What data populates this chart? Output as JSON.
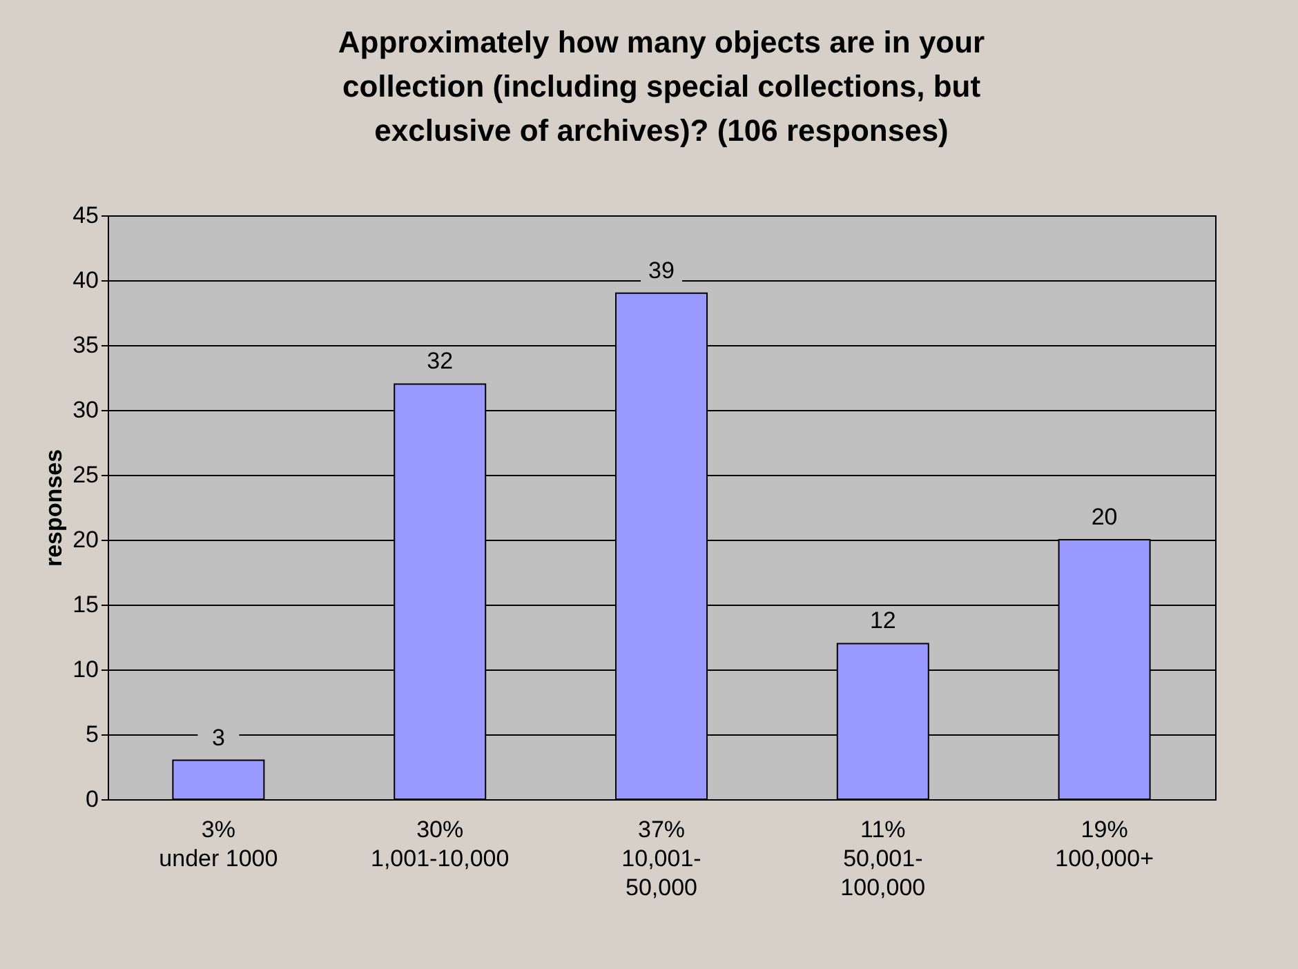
{
  "chart_data": {
    "type": "bar",
    "title": "Approximately how many objects are in your collection (including special collections, but exclusive of archives)? (106 responses)",
    "ylabel": "responses",
    "categories": [
      "3%\n\nunder 1000",
      "30%\n\n1,001-10,000",
      "37%\n\n10,001-\n50,000",
      "11%\n\n50,001-\n100,000",
      "19%\n\n100,000+"
    ],
    "values": [
      3,
      32,
      39,
      12,
      20
    ],
    "color": "#9999ff",
    "ylim": [
      0,
      45
    ],
    "yticks": [
      0,
      5,
      10,
      15,
      20,
      25,
      30,
      35,
      40,
      45
    ],
    "grid": "y",
    "data_labels": true
  }
}
